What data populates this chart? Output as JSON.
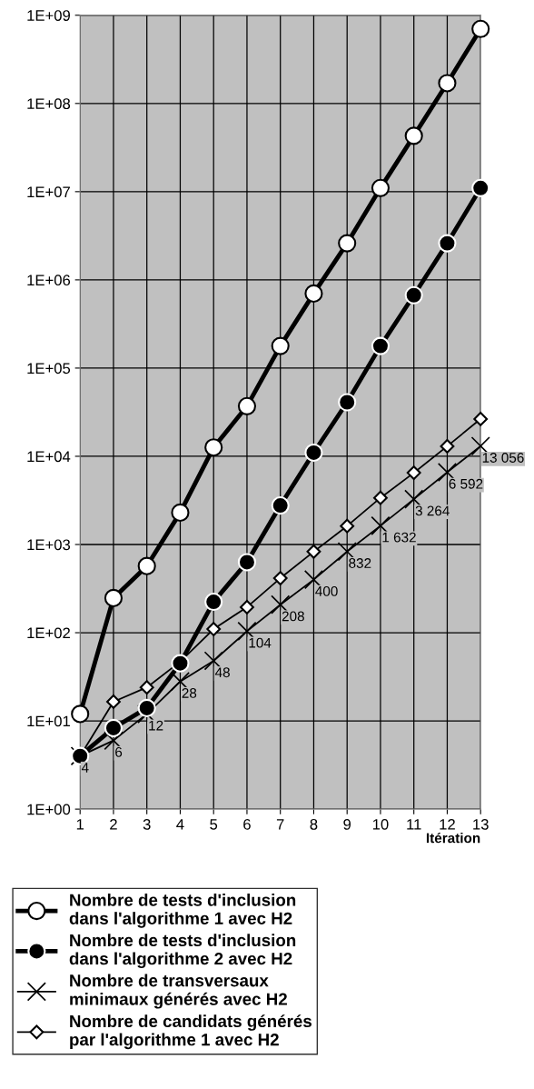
{
  "chart_data": {
    "type": "line",
    "xlabel": "Itération",
    "x": [
      1,
      2,
      3,
      4,
      5,
      6,
      7,
      8,
      9,
      10,
      11,
      12,
      13
    ],
    "log": "y",
    "grid": true,
    "legend": "bottom",
    "line_style": "solid",
    "xlim": [
      1,
      13
    ],
    "xticks": [
      1,
      2,
      3,
      4,
      5,
      6,
      7,
      8,
      9,
      10,
      11,
      12,
      13
    ],
    "ylim": [
      1,
      1000000000
    ],
    "yticks": [
      {
        "value": 1,
        "label": "1E+00"
      },
      {
        "value": 10,
        "label": "1E+01"
      },
      {
        "value": 100,
        "label": "1E+02"
      },
      {
        "value": 1000,
        "label": "1E+03"
      },
      {
        "value": 10000,
        "label": "1E+04"
      },
      {
        "value": 100000,
        "label": "1E+05"
      },
      {
        "value": 1000000,
        "label": "1E+06"
      },
      {
        "value": 10000000,
        "label": "1E+07"
      },
      {
        "value": 100000000,
        "label": "1E+08"
      },
      {
        "value": 1000000000,
        "label": "1E+09"
      }
    ],
    "series": [
      {
        "name": "Nombre de tests d'inclusion\ndans l'algorithme 1 avec H2",
        "color": "#000000",
        "marker": "circle",
        "values": [
          12,
          247,
          570,
          2300,
          12600,
          37000,
          178000,
          700000,
          2600000,
          11000000,
          43000000,
          170000000,
          700000000
        ]
      },
      {
        "name": "Nombre de tests d'inclusion\ndans l'algorithme 2 avec H2",
        "color": "#000000",
        "marker": "circle",
        "values": [
          4,
          8.3,
          14,
          45,
          224,
          630,
          2770,
          11000,
          41000,
          178000,
          670000,
          2600000,
          11000000
        ]
      },
      {
        "name": "Nombre de transversaux\nminimaux générés avec H2",
        "color": "#000000",
        "marker": "cross",
        "values": [
          4,
          6,
          12,
          28,
          48,
          104,
          208,
          400,
          832,
          1632,
          3264,
          6592,
          13056
        ],
        "value_labels": [
          "4",
          "6",
          "12",
          "28",
          "48",
          "104",
          "208",
          "400",
          "832",
          "1 632",
          "3 264",
          "6 592",
          "13 056"
        ]
      },
      {
        "name": "Nombre de candidats générés\npar l'algorithme 1 avec H2",
        "color": "#000000",
        "marker": "diamond",
        "values": [
          4,
          16.5,
          24,
          47,
          110,
          195,
          415,
          830,
          1620,
          3380,
          6500,
          13000,
          26500
        ]
      }
    ]
  }
}
